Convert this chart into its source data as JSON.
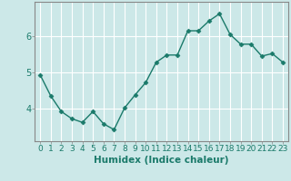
{
  "x": [
    0,
    1,
    2,
    3,
    4,
    5,
    6,
    7,
    8,
    9,
    10,
    11,
    12,
    13,
    14,
    15,
    16,
    17,
    18,
    19,
    20,
    21,
    22,
    23
  ],
  "y": [
    4.93,
    4.35,
    3.92,
    3.72,
    3.62,
    3.92,
    3.58,
    3.42,
    4.02,
    4.38,
    4.72,
    5.28,
    5.48,
    5.48,
    6.15,
    6.15,
    6.42,
    6.62,
    6.05,
    5.78,
    5.78,
    5.45,
    5.52,
    5.28
  ],
  "line_color": "#1a7a6a",
  "marker": "D",
  "marker_size": 2.5,
  "line_width": 1.0,
  "bg_color": "#cce8e8",
  "grid_color": "#ffffff",
  "xlabel": "Humidex (Indice chaleur)",
  "xlabel_fontsize": 7.5,
  "xlabel_color": "#1a7a6a",
  "tick_color": "#1a7a6a",
  "tick_fontsize": 6.5,
  "ylim": [
    3.1,
    6.95
  ],
  "yticks": [
    4,
    5,
    6
  ],
  "xlim": [
    -0.5,
    23.5
  ],
  "xticks": [
    0,
    1,
    2,
    3,
    4,
    5,
    6,
    7,
    8,
    9,
    10,
    11,
    12,
    13,
    14,
    15,
    16,
    17,
    18,
    19,
    20,
    21,
    22,
    23
  ],
  "axis_color": "#888888",
  "spine_color": "#888888"
}
